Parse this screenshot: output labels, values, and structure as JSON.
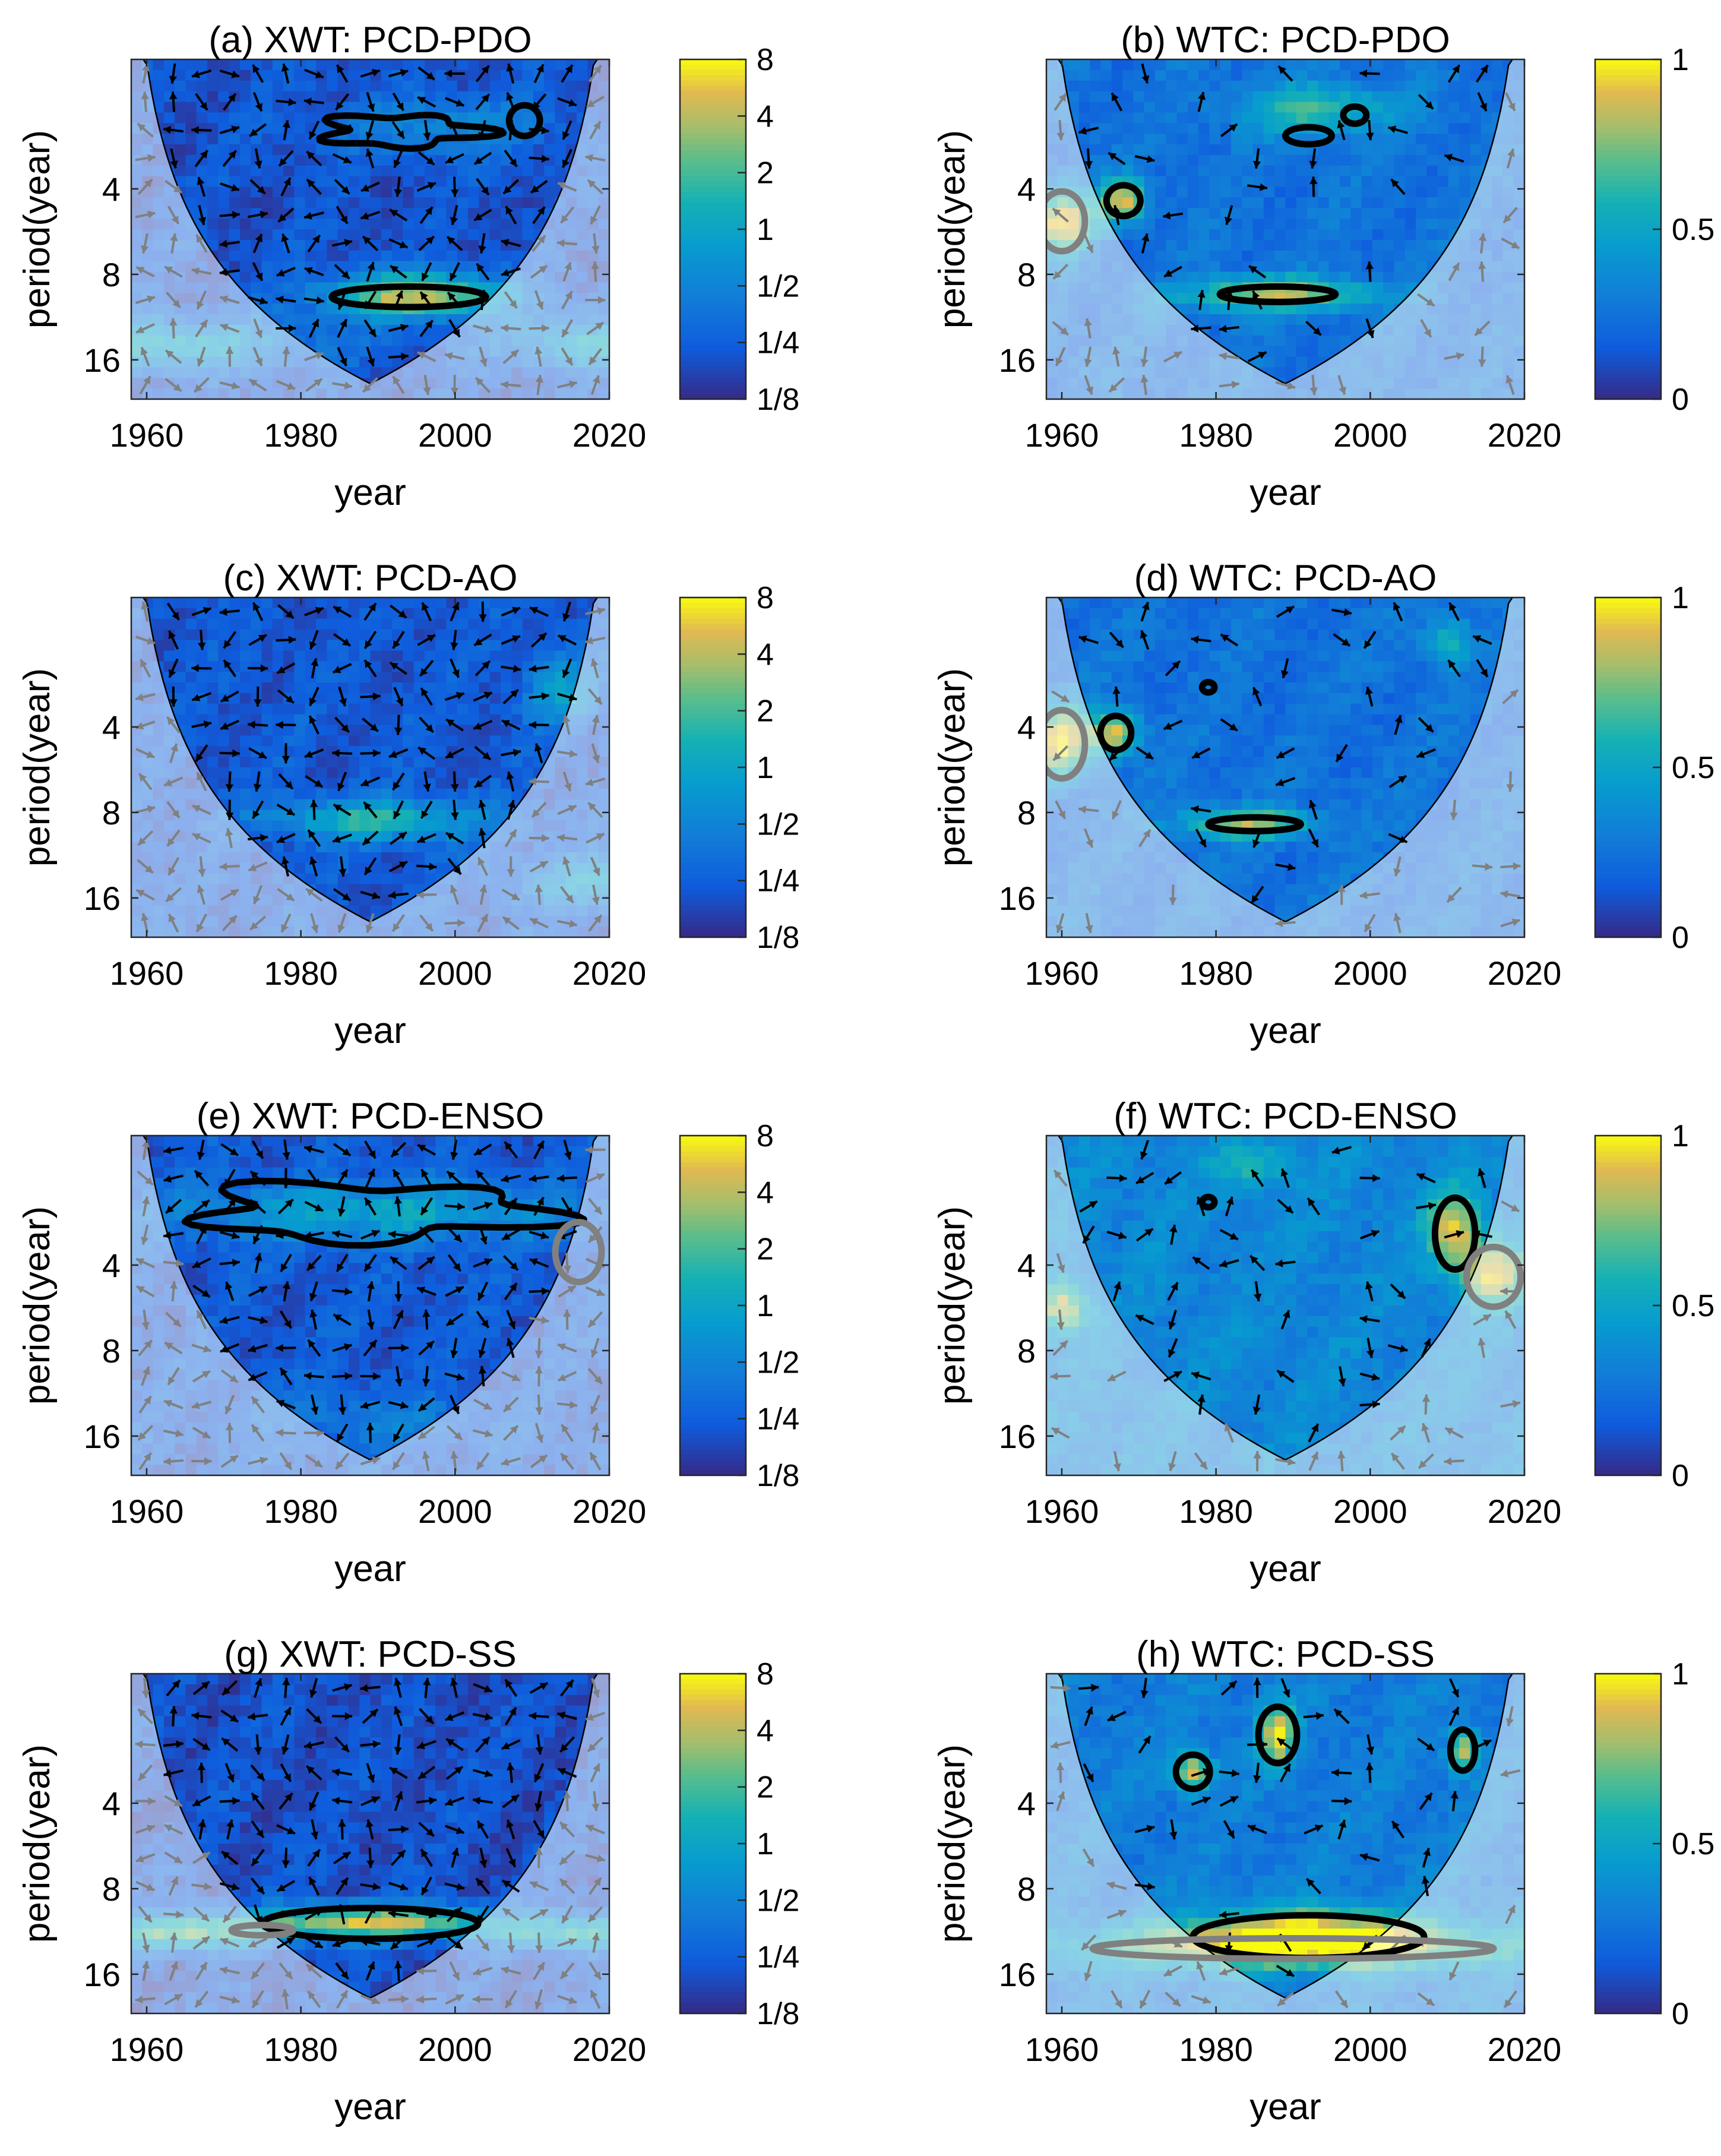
{
  "chart_data": [
    {
      "id": "a",
      "type": "heatmap",
      "method": "XWT",
      "title": "(a) XWT: PCD-PDO",
      "xlabel": "year",
      "ylabel": "period(year)",
      "xticks": [
        "1960",
        "1980",
        "2000",
        "2020"
      ],
      "yticks": [
        "4",
        "8",
        "16"
      ],
      "xlim": [
        1958,
        2020
      ],
      "ylim_period": [
        1.4,
        22
      ],
      "colorbar": {
        "ticks": [
          "8",
          "4",
          "2",
          "1",
          "1/2",
          "1/4",
          "1/8"
        ],
        "range": [
          0.125,
          8
        ],
        "scale": "log2"
      },
      "coi_center_year": 1990,
      "base_level": 0.13,
      "hot_bands": [
        {
          "year": 1995,
          "period": 9.5,
          "year_width": 12,
          "period_width": 0.26,
          "level": 0.85
        },
        {
          "year": 1999,
          "period": 2.4,
          "year_width": 14,
          "period_width": 0.35,
          "level": 0.35
        },
        {
          "year": 1960,
          "period": 14,
          "year_width": 20,
          "period_width": 0.3,
          "level": 0.55
        },
        {
          "year": 2018,
          "period": 14,
          "year_width": 12,
          "period_width": 0.3,
          "level": 0.5
        }
      ],
      "significant_regions": [
        {
          "year": 1994,
          "period": 9.6,
          "year_width": 10,
          "period_width": 0.12,
          "shape": "ellipse",
          "outside_coi": false
        },
        {
          "year": 1993,
          "period": 2.5,
          "year_width": 10,
          "period_width": 0.18,
          "shape": "blob",
          "outside_coi": false
        },
        {
          "year": 2009,
          "period": 2.3,
          "year_width": 2,
          "period_width": 0.18,
          "shape": "ellipse",
          "outside_coi": false
        }
      ]
    },
    {
      "id": "b",
      "type": "heatmap",
      "method": "WTC",
      "title": "(b) WTC: PCD-PDO",
      "xlabel": "year",
      "ylabel": "period(year)",
      "xticks": [
        "1960",
        "1980",
        "2000",
        "2020"
      ],
      "yticks": [
        "4",
        "8",
        "16"
      ],
      "xlim": [
        1958,
        2020
      ],
      "ylim_period": [
        1.4,
        22
      ],
      "colorbar": {
        "ticks": [
          "1",
          "0.5",
          "0"
        ],
        "range": [
          0,
          1
        ],
        "scale": "linear"
      },
      "coi_center_year": 1990,
      "base_level": 0.25,
      "hot_bands": [
        {
          "year": 1988,
          "period": 9.4,
          "year_width": 12,
          "period_width": 0.2,
          "level": 0.85
        },
        {
          "year": 1968,
          "period": 4.4,
          "year_width": 3,
          "period_width": 0.25,
          "level": 0.9
        },
        {
          "year": 1960,
          "period": 5.2,
          "year_width": 4,
          "period_width": 0.35,
          "level": 0.95
        },
        {
          "year": 1993,
          "period": 2.1,
          "year_width": 10,
          "period_width": 0.3,
          "level": 0.65
        }
      ],
      "significant_regions": [
        {
          "year": 1988,
          "period": 9.4,
          "year_width": 7.5,
          "period_width": 0.09,
          "shape": "ellipse",
          "outside_coi": false
        },
        {
          "year": 1968,
          "period": 4.4,
          "year_width": 2.2,
          "period_width": 0.18,
          "shape": "ellipse",
          "outside_coi": false
        },
        {
          "year": 1992,
          "period": 2.6,
          "year_width": 3,
          "period_width": 0.1,
          "shape": "ellipse",
          "outside_coi": false
        },
        {
          "year": 1998,
          "period": 2.2,
          "year_width": 1.5,
          "period_width": 0.1,
          "shape": "ellipse",
          "outside_coi": false
        },
        {
          "year": 1960,
          "period": 5.2,
          "year_width": 3,
          "period_width": 0.35,
          "shape": "ellipse",
          "outside_coi": true
        }
      ]
    },
    {
      "id": "c",
      "type": "heatmap",
      "method": "XWT",
      "title": "(c) XWT: PCD-AO",
      "xlabel": "year",
      "ylabel": "period(year)",
      "xticks": [
        "1960",
        "1980",
        "2000",
        "2020"
      ],
      "yticks": [
        "4",
        "8",
        "16"
      ],
      "xlim": [
        1958,
        2020
      ],
      "ylim_period": [
        1.4,
        22
      ],
      "colorbar": {
        "ticks": [
          "8",
          "4",
          "2",
          "1",
          "1/2",
          "1/4",
          "1/8"
        ],
        "range": [
          0.125,
          8
        ],
        "scale": "log2"
      },
      "coi_center_year": 1990,
      "base_level": 0.15,
      "hot_bands": [
        {
          "year": 1990,
          "period": 8.5,
          "year_width": 14,
          "period_width": 0.25,
          "level": 0.6
        },
        {
          "year": 2014,
          "period": 3,
          "year_width": 5,
          "period_width": 0.4,
          "level": 0.45
        },
        {
          "year": 2018,
          "period": 14,
          "year_width": 10,
          "period_width": 0.3,
          "level": 0.45
        }
      ],
      "significant_regions": []
    },
    {
      "id": "d",
      "type": "heatmap",
      "method": "WTC",
      "title": "(d) WTC: PCD-AO",
      "xlabel": "year",
      "ylabel": "period(year)",
      "xticks": [
        "1960",
        "1980",
        "2000",
        "2020"
      ],
      "yticks": [
        "4",
        "8",
        "16"
      ],
      "xlim": [
        1958,
        2020
      ],
      "ylim_period": [
        1.4,
        22
      ],
      "colorbar": {
        "ticks": [
          "1",
          "0.5",
          "0"
        ],
        "range": [
          0,
          1
        ],
        "scale": "linear"
      },
      "coi_center_year": 1990,
      "base_level": 0.25,
      "hot_bands": [
        {
          "year": 1984,
          "period": 8.8,
          "year_width": 9,
          "period_width": 0.18,
          "level": 0.8
        },
        {
          "year": 1967,
          "period": 4.2,
          "year_width": 3,
          "period_width": 0.25,
          "level": 0.9
        },
        {
          "year": 1960,
          "period": 4.5,
          "year_width": 4,
          "period_width": 0.4,
          "level": 0.95
        },
        {
          "year": 2010,
          "period": 2,
          "year_width": 3,
          "period_width": 0.3,
          "level": 0.6
        }
      ],
      "significant_regions": [
        {
          "year": 1985,
          "period": 8.8,
          "year_width": 6,
          "period_width": 0.08,
          "shape": "ellipse",
          "outside_coi": false
        },
        {
          "year": 1967,
          "period": 4.2,
          "year_width": 2,
          "period_width": 0.2,
          "shape": "ellipse",
          "outside_coi": false
        },
        {
          "year": 1979,
          "period": 2.9,
          "year_width": 0.8,
          "period_width": 0.06,
          "shape": "ellipse",
          "outside_coi": false
        },
        {
          "year": 1960,
          "period": 4.6,
          "year_width": 3,
          "period_width": 0.4,
          "shape": "ellipse",
          "outside_coi": true
        }
      ]
    },
    {
      "id": "e",
      "type": "heatmap",
      "method": "XWT",
      "title": "(e) XWT: PCD-ENSO",
      "xlabel": "year",
      "ylabel": "period(year)",
      "xticks": [
        "1960",
        "1980",
        "2000",
        "2020"
      ],
      "yticks": [
        "4",
        "8",
        "16"
      ],
      "xlim": [
        1958,
        2020
      ],
      "ylim_period": [
        1.4,
        22
      ],
      "colorbar": {
        "ticks": [
          "8",
          "4",
          "2",
          "1",
          "1/2",
          "1/4",
          "1/8"
        ],
        "range": [
          0.125,
          8
        ],
        "scale": "log2"
      },
      "coi_center_year": 1990,
      "base_level": 0.15,
      "hot_bands": [
        {
          "year": 1990,
          "period": 2.6,
          "year_width": 26,
          "period_width": 0.35,
          "level": 0.5
        },
        {
          "year": 1990,
          "period": 14,
          "year_width": 14,
          "period_width": 0.35,
          "level": 0.3
        }
      ],
      "significant_regions": [
        {
          "year": 1989,
          "period": 2.6,
          "year_width": 22,
          "period_width": 0.32,
          "shape": "blob",
          "outside_coi": false
        },
        {
          "year": 2016,
          "period": 3.6,
          "year_width": 3,
          "period_width": 0.35,
          "shape": "ellipse",
          "outside_coi": true
        }
      ]
    },
    {
      "id": "f",
      "type": "heatmap",
      "method": "WTC",
      "title": "(f) WTC: PCD-ENSO",
      "xlabel": "year",
      "ylabel": "period(year)",
      "xticks": [
        "1960",
        "1980",
        "2000",
        "2020"
      ],
      "yticks": [
        "4",
        "8",
        "16"
      ],
      "xlim": [
        1958,
        2020
      ],
      "ylim_period": [
        1.4,
        22
      ],
      "colorbar": {
        "ticks": [
          "1",
          "0.5",
          "0"
        ],
        "range": [
          0,
          1
        ],
        "scale": "linear"
      },
      "coi_center_year": 1990,
      "base_level": 0.35,
      "hot_bands": [
        {
          "year": 2011,
          "period": 3,
          "year_width": 3.5,
          "period_width": 0.45,
          "level": 0.9
        },
        {
          "year": 2016,
          "period": 4.3,
          "year_width": 4,
          "period_width": 0.35,
          "level": 0.92
        },
        {
          "year": 1960,
          "period": 5.6,
          "year_width": 3,
          "period_width": 0.3,
          "level": 0.9
        },
        {
          "year": 1985,
          "period": 1.8,
          "year_width": 5,
          "period_width": 0.25,
          "level": 0.6
        }
      ],
      "significant_regions": [
        {
          "year": 2011,
          "period": 3.1,
          "year_width": 2.6,
          "period_width": 0.42,
          "shape": "ellipse",
          "outside_coi": false
        },
        {
          "year": 1979,
          "period": 2.4,
          "year_width": 0.8,
          "period_width": 0.06,
          "shape": "ellipse",
          "outside_coi": false
        },
        {
          "year": 2016,
          "period": 4.4,
          "year_width": 3.5,
          "period_width": 0.35,
          "shape": "ellipse",
          "outside_coi": true
        }
      ]
    },
    {
      "id": "g",
      "type": "heatmap",
      "method": "XWT",
      "title": "(g) XWT: PCD-SS",
      "xlabel": "year",
      "ylabel": "period(year)",
      "xticks": [
        "1960",
        "1980",
        "2000",
        "2020"
      ],
      "yticks": [
        "4",
        "8",
        "16"
      ],
      "xlim": [
        1958,
        2020
      ],
      "ylim_period": [
        1.4,
        22
      ],
      "colorbar": {
        "ticks": [
          "8",
          "4",
          "2",
          "1",
          "1/2",
          "1/4",
          "1/8"
        ],
        "range": [
          0.125,
          8
        ],
        "scale": "log2"
      },
      "coi_center_year": 1990,
      "base_level": 0.12,
      "hot_bands": [
        {
          "year": 1989,
          "period": 10.5,
          "year_width": 16,
          "period_width": 0.2,
          "level": 0.9
        },
        {
          "year": 1964,
          "period": 11.5,
          "year_width": 10,
          "period_width": 0.2,
          "level": 0.7
        },
        {
          "year": 2016,
          "period": 11.5,
          "year_width": 10,
          "period_width": 0.2,
          "level": 0.6
        }
      ],
      "significant_regions": [
        {
          "year": 1989,
          "period": 10.6,
          "year_width": 14,
          "period_width": 0.18,
          "shape": "ellipse",
          "outside_coi": false
        },
        {
          "year": 1975,
          "period": 11.2,
          "year_width": 4,
          "period_width": 0.06,
          "shape": "ellipse",
          "outside_coi": true
        }
      ]
    },
    {
      "id": "h",
      "type": "heatmap",
      "method": "WTC",
      "title": "(h) WTC: PCD-SS",
      "xlabel": "year",
      "ylabel": "period(year)",
      "xticks": [
        "1960",
        "1980",
        "2000",
        "2020"
      ],
      "yticks": [
        "4",
        "8",
        "16"
      ],
      "xlim": [
        1958,
        2020
      ],
      "ylim_period": [
        1.4,
        22
      ],
      "colorbar": {
        "ticks": [
          "1",
          "0.5",
          "0"
        ],
        "range": [
          0,
          1
        ],
        "scale": "linear"
      },
      "coi_center_year": 1990,
      "base_level": 0.3,
      "hot_bands": [
        {
          "year": 1992,
          "period": 11.5,
          "year_width": 16,
          "period_width": 0.3,
          "level": 0.92
        },
        {
          "year": 1990,
          "period": 13,
          "year_width": 34,
          "period_width": 0.25,
          "level": 0.75
        },
        {
          "year": 1977,
          "period": 3.1,
          "year_width": 2.5,
          "period_width": 0.22,
          "level": 0.9
        },
        {
          "year": 1988,
          "period": 2.3,
          "year_width": 2.5,
          "period_width": 0.35,
          "level": 0.92
        },
        {
          "year": 2012,
          "period": 2.6,
          "year_width": 1.8,
          "period_width": 0.25,
          "level": 0.9
        }
      ],
      "significant_regions": [
        {
          "year": 1992,
          "period": 11.8,
          "year_width": 15,
          "period_width": 0.25,
          "shape": "ellipse",
          "outside_coi": false
        },
        {
          "year": 1977,
          "period": 3.1,
          "year_width": 2.2,
          "period_width": 0.2,
          "shape": "ellipse",
          "outside_coi": false
        },
        {
          "year": 1988,
          "period": 2.3,
          "year_width": 2.5,
          "period_width": 0.33,
          "shape": "ellipse",
          "outside_coi": false
        },
        {
          "year": 2012,
          "period": 2.6,
          "year_width": 1.6,
          "period_width": 0.24,
          "shape": "ellipse",
          "outside_coi": false
        },
        {
          "year": 1990,
          "period": 13,
          "year_width": 26,
          "period_width": 0.12,
          "shape": "ellipse",
          "outside_coi": true
        }
      ]
    }
  ]
}
